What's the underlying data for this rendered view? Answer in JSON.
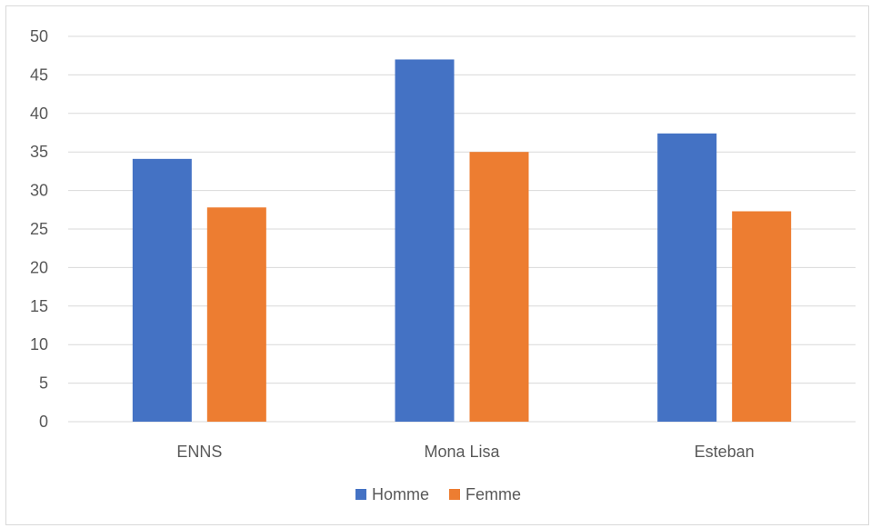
{
  "chart_data": {
    "type": "bar",
    "title": "",
    "xlabel": "",
    "ylabel": "",
    "categories": [
      "ENNS",
      "Mona Lisa",
      "Esteban"
    ],
    "series": [
      {
        "name": "Homme",
        "values": [
          34.1,
          47.0,
          37.4
        ],
        "color": "#4472c4"
      },
      {
        "name": "Femme",
        "values": [
          27.8,
          35.0,
          27.3
        ],
        "color": "#ed7d31"
      }
    ],
    "ylim": [
      0,
      50
    ],
    "yticks": [
      "0",
      "5",
      "10",
      "15",
      "20",
      "25",
      "30",
      "35",
      "40",
      "45",
      "50"
    ],
    "grid": true,
    "gridline_color": "#d9d9d9",
    "legend_position": "bottom"
  }
}
